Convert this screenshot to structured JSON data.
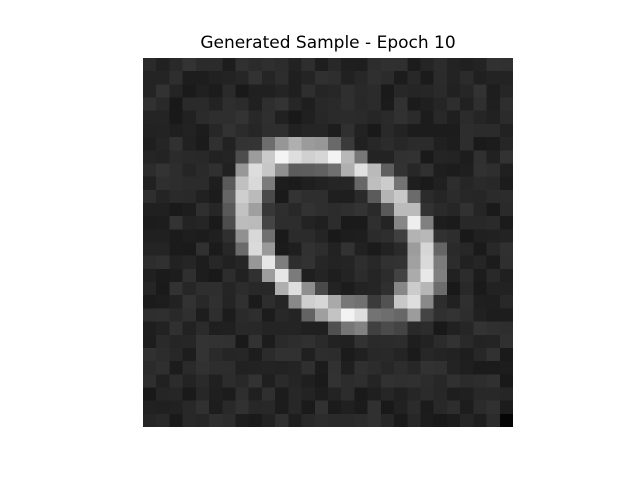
{
  "figure": {
    "title": "Generated Sample - Epoch 10"
  },
  "image": {
    "description_kind": "grayscale-digit",
    "resolution": [
      28,
      28
    ],
    "colormap": "gray",
    "content": "handwritten digit zero (ring shape), tilted"
  }
}
